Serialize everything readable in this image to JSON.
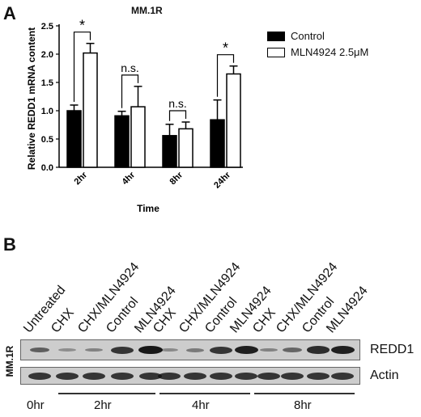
{
  "panel_a": {
    "letter": "A"
  },
  "panel_b": {
    "letter": "B"
  },
  "chart_data": {
    "type": "bar",
    "title": "MM.1R",
    "xlabel": "Time",
    "ylabel": "Relative REDD1 mRNA content",
    "categories": [
      "2hr",
      "4hr",
      "8hr",
      "24hr"
    ],
    "ylim": [
      0,
      2.5
    ],
    "yticks": [
      "0.0",
      "0.5",
      "1.0",
      "1.5",
      "2.0",
      "2.5"
    ],
    "series": [
      {
        "name": "Control",
        "color": "#000000",
        "values": [
          1.0,
          0.91,
          0.56,
          0.84
        ],
        "errors": [
          0.1,
          0.08,
          0.2,
          0.35
        ]
      },
      {
        "name": "MLN4924 2.5μM",
        "color": "#ffffff",
        "values": [
          2.02,
          1.07,
          0.68,
          1.65
        ],
        "errors": [
          0.17,
          0.36,
          0.12,
          0.14
        ]
      }
    ],
    "annotations": [
      "*",
      "n.s.",
      "n.s.",
      "*"
    ]
  },
  "blot": {
    "cell_line": "MM.1R",
    "lanes": [
      "Untreated",
      "CHX",
      "CHX/MLN4924",
      "Control",
      "MLN4924",
      "CHX",
      "CHX/MLN4924",
      "Control",
      "MLN4924",
      "CHX",
      "CHX/MLN4924",
      "Control",
      "MLN4924"
    ],
    "proteins": [
      "REDD1",
      "Actin"
    ],
    "time_points": [
      "0hr",
      "2hr",
      "4hr",
      "8hr"
    ],
    "redd1_intensity": [
      0.45,
      0.12,
      0.2,
      0.75,
      0.95,
      0.15,
      0.25,
      0.75,
      0.9,
      0.2,
      0.4,
      0.8,
      0.9
    ],
    "actin_intensity": [
      0.75,
      0.75,
      0.75,
      0.75,
      0.75,
      0.75,
      0.75,
      0.75,
      0.75,
      0.75,
      0.75,
      0.75,
      0.75
    ]
  }
}
